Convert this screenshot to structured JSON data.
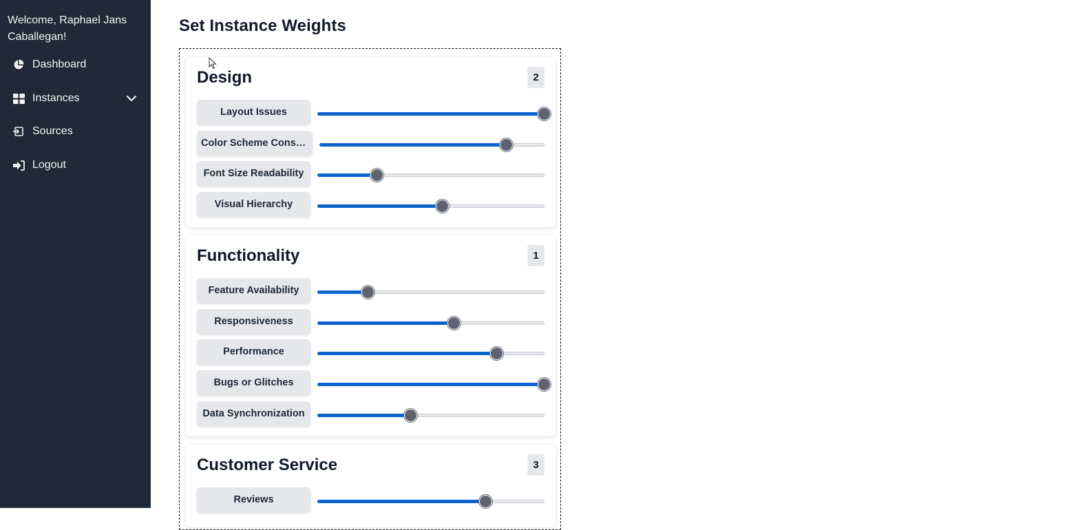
{
  "sidebar": {
    "welcome": "Welcome, Raphael Jans Caballegan!",
    "items": [
      {
        "label": "Dashboard",
        "icon": "pie-chart-icon"
      },
      {
        "label": "Instances",
        "icon": "grid-icon",
        "expandable": true
      },
      {
        "label": "Sources",
        "icon": "import-icon"
      },
      {
        "label": "Logout",
        "icon": "logout-icon"
      }
    ]
  },
  "main": {
    "title": "Set Instance Weights"
  },
  "colors": {
    "sidebar_bg": "#1f2937",
    "accent": "#0b63ce",
    "thumb": "#5f6370"
  },
  "categories": [
    {
      "title": "Design",
      "weight": "2",
      "criteria": [
        {
          "label": "Layout Issues",
          "value": 1.0
        },
        {
          "label": "Color Scheme Consis...",
          "value": 0.83
        },
        {
          "label": "Font Size Readability",
          "value": 0.26
        },
        {
          "label": "Visual Hierarchy",
          "value": 0.55
        }
      ]
    },
    {
      "title": "Functionality",
      "weight": "1",
      "criteria": [
        {
          "label": "Feature Availability",
          "value": 0.22
        },
        {
          "label": "Responsiveness",
          "value": 0.6
        },
        {
          "label": "Performance",
          "value": 0.79
        },
        {
          "label": "Bugs or Glitches",
          "value": 1.0
        },
        {
          "label": "Data Synchronization",
          "value": 0.41
        }
      ]
    },
    {
      "title": "Customer Service",
      "weight": "3",
      "criteria": [
        {
          "label": "Reviews",
          "value": 0.74
        }
      ]
    }
  ]
}
